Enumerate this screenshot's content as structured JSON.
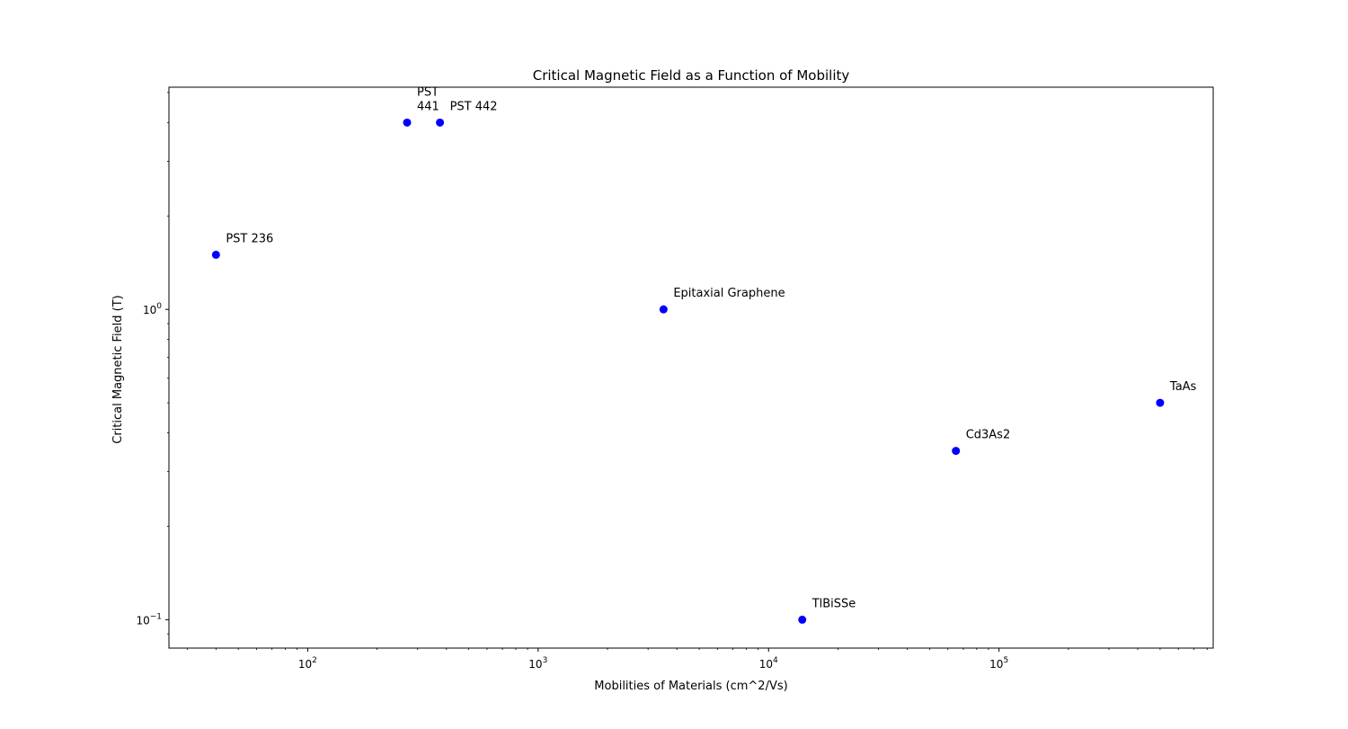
{
  "chart_data": {
    "type": "scatter",
    "title": "Critical Magnetic Field as a Function of Mobility",
    "xlabel": "Mobilities of Materials (cm^2/Vs)",
    "ylabel": "Critical Magnetic Field (T)",
    "xscale": "log",
    "yscale": "log",
    "xlim": [
      25,
      850000
    ],
    "ylim": [
      0.081,
      5.2
    ],
    "grid": false,
    "marker_color": "#0000ff",
    "x_tick_labels": [
      {
        "value": 100,
        "base": "10",
        "exp": "2"
      },
      {
        "value": 1000,
        "base": "10",
        "exp": "3"
      },
      {
        "value": 10000,
        "base": "10",
        "exp": "4"
      },
      {
        "value": 100000,
        "base": "10",
        "exp": "5"
      }
    ],
    "y_tick_labels": [
      {
        "value": 1,
        "base": "10",
        "exp": "0"
      },
      {
        "value": 0.1,
        "base": "10",
        "exp": "−1"
      }
    ],
    "points": [
      {
        "label": "PST 236",
        "x": 40,
        "y": 1.5
      },
      {
        "label": "PST\n441",
        "x": 270,
        "y": 4.0
      },
      {
        "label": "PST 442",
        "x": 375,
        "y": 4.0
      },
      {
        "label": "Epitaxial Graphene",
        "x": 3500,
        "y": 1.0
      },
      {
        "label": "TlBiSSe",
        "x": 14000,
        "y": 0.1
      },
      {
        "label": "Cd3As2",
        "x": 65000,
        "y": 0.35
      },
      {
        "label": "TaAs",
        "x": 500000,
        "y": 0.5
      }
    ]
  }
}
